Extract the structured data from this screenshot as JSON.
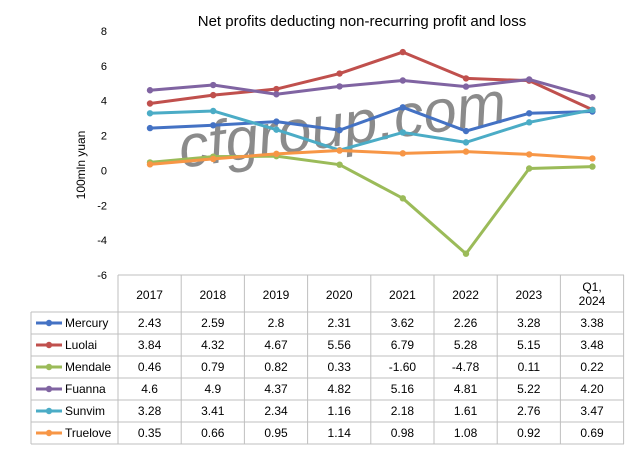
{
  "chart_data": {
    "type": "line",
    "title": "Net profits deducting non-recurring profit and loss",
    "ylabel": "100mln yuan",
    "xlabel": "",
    "ylim": [
      -6,
      8
    ],
    "yticks": [
      8,
      6,
      4,
      2,
      0,
      -2,
      -4,
      -6
    ],
    "grid": false,
    "legend": "table-left",
    "watermark": "cfgroup.com",
    "categories": [
      "2017",
      "2018",
      "2019",
      "2020",
      "2021",
      "2022",
      "2023",
      "Q1,\n2024"
    ],
    "series": [
      {
        "name": "Mercury",
        "color": "#4472C4",
        "values": [
          2.43,
          2.59,
          2.8,
          2.31,
          3.62,
          2.26,
          3.28,
          3.38
        ],
        "labels": [
          "2.43",
          "2.59",
          "2.8",
          "2.31",
          "3.62",
          "2.26",
          "3.28",
          "3.38"
        ]
      },
      {
        "name": "Luolai",
        "color": "#C0504D",
        "values": [
          3.84,
          4.32,
          4.67,
          5.56,
          6.79,
          5.28,
          5.15,
          3.48
        ],
        "labels": [
          "3.84",
          "4.32",
          "4.67",
          "5.56",
          "6.79",
          "5.28",
          "5.15",
          "3.48"
        ]
      },
      {
        "name": "Mendale",
        "color": "#9BBB59",
        "values": [
          0.46,
          0.79,
          0.82,
          0.33,
          -1.6,
          -4.78,
          0.11,
          0.22
        ],
        "labels": [
          "0.46",
          "0.79",
          "0.82",
          "0.33",
          "-1.60",
          "-4.78",
          "0.11",
          "0.22"
        ]
      },
      {
        "name": "Fuanna",
        "color": "#8064A2",
        "values": [
          4.6,
          4.9,
          4.37,
          4.82,
          5.16,
          4.81,
          5.22,
          4.2
        ],
        "labels": [
          "4.6",
          "4.9",
          "4.37",
          "4.82",
          "5.16",
          "4.81",
          "5.22",
          "4.20"
        ]
      },
      {
        "name": "Sunvim",
        "color": "#4BACC6",
        "values": [
          3.28,
          3.41,
          2.34,
          1.16,
          2.18,
          1.61,
          2.76,
          3.47
        ],
        "labels": [
          "3.28",
          "3.41",
          "2.34",
          "1.16",
          "2.18",
          "1.61",
          "2.76",
          "3.47"
        ]
      },
      {
        "name": "Truelove",
        "color": "#F79646",
        "values": [
          0.35,
          0.66,
          0.95,
          1.14,
          0.98,
          1.08,
          0.92,
          0.69
        ],
        "labels": [
          "0.35",
          "0.66",
          "0.95",
          "1.14",
          "0.98",
          "1.08",
          "0.92",
          "0.69"
        ]
      }
    ]
  }
}
